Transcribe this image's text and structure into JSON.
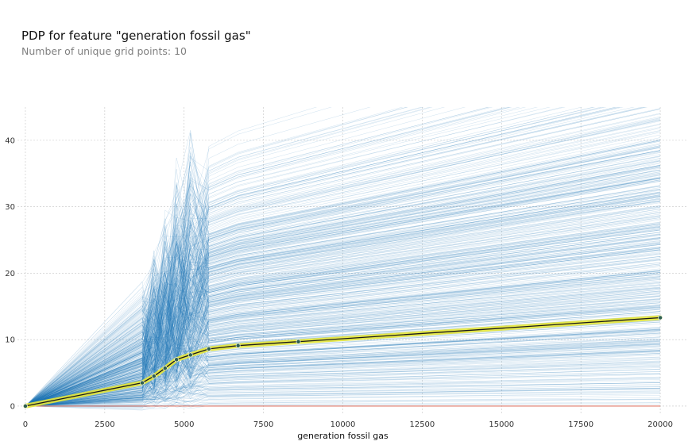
{
  "chart_data": {
    "type": "line",
    "title": "PDP for feature \"generation fossil gas\"",
    "subtitle": "Number of unique grid points: 10",
    "xlabel": "generation fossil gas",
    "ylabel": "",
    "xlim": [
      -800,
      21000
    ],
    "ylim": [
      -1.2,
      45
    ],
    "x_ticks": [
      0,
      2500,
      5000,
      7500,
      10000,
      12500,
      15000,
      17500,
      20000
    ],
    "y_ticks": [
      0,
      10,
      20,
      30,
      40
    ],
    "grid": true,
    "legend": "none",
    "series": [
      {
        "role": "pdp",
        "x": [
          0,
          3680,
          4050,
          4400,
          4760,
          5200,
          5780,
          6700,
          8600,
          20000
        ],
        "y": [
          0,
          3.5,
          4.5,
          5.7,
          7.0,
          7.7,
          8.6,
          9.1,
          9.7,
          13.3
        ]
      }
    ],
    "ice_lines": "many individual conditional expectation lines in light blue, spread between about -1 and 45",
    "baseline": 0,
    "colors": {
      "ice": "#1f77b4",
      "pdp_fill": "#e8e83a",
      "pdp_line": "#1a1a1a",
      "pdp_marker": "#2f5f4f",
      "baseline": "#e07a6a",
      "grid": "#c4c4c4"
    }
  }
}
